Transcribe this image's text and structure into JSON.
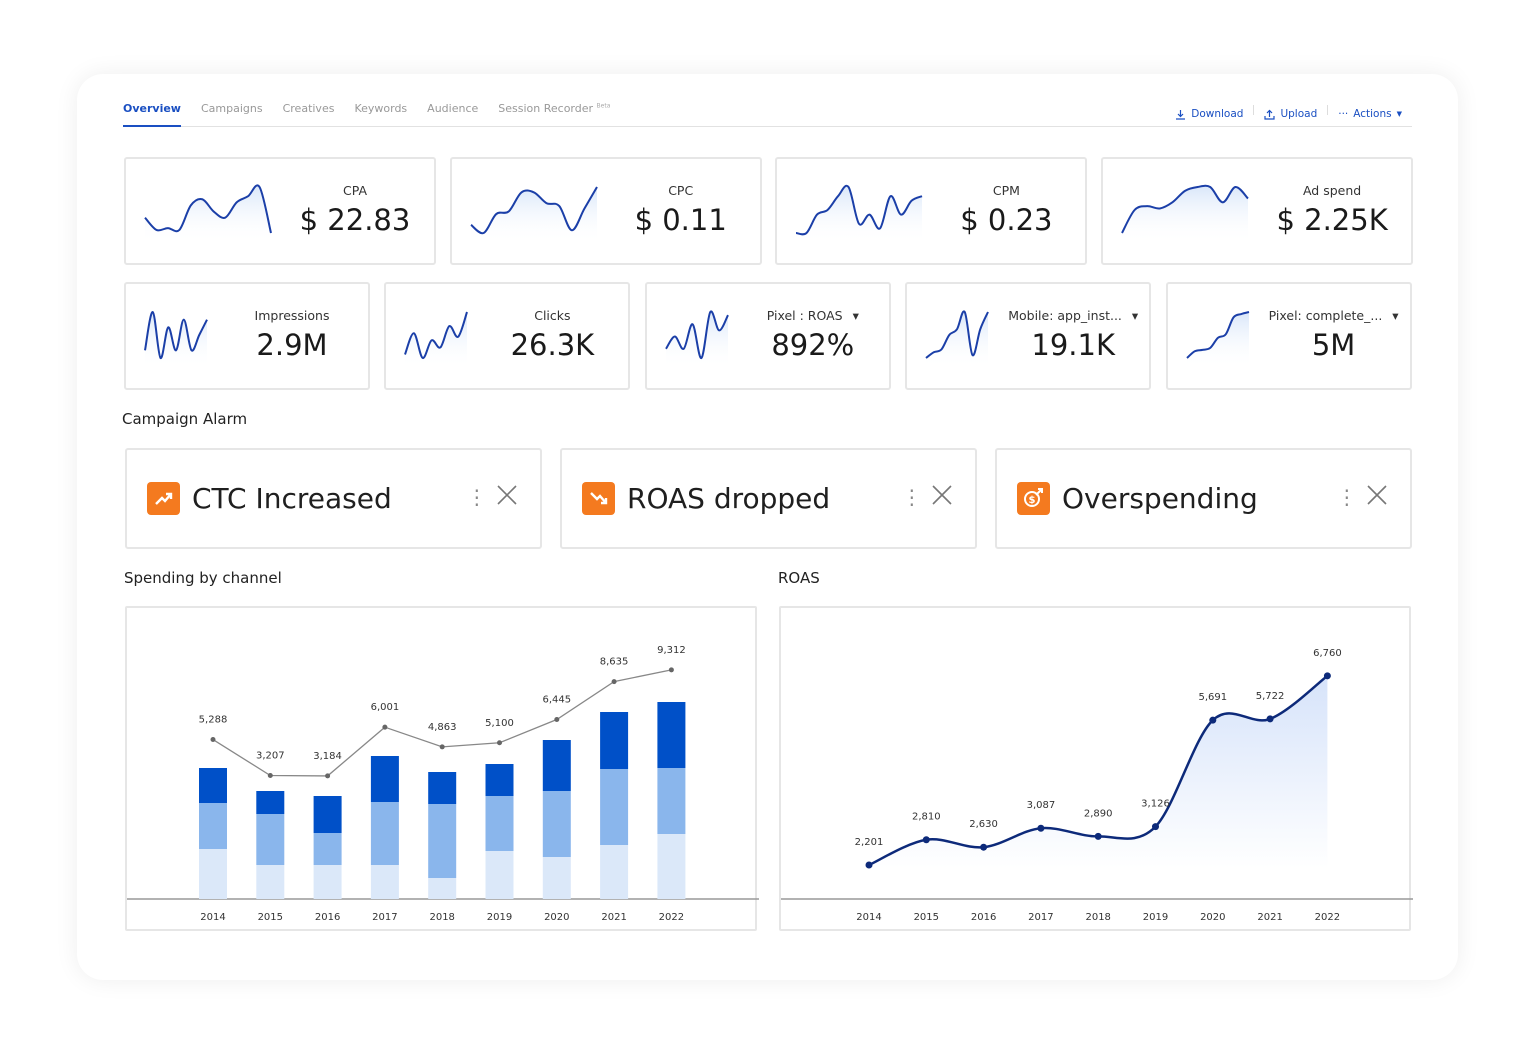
{
  "tabs": [
    {
      "label": "Overview",
      "active": true
    },
    {
      "label": "Campaigns"
    },
    {
      "label": "Creatives"
    },
    {
      "label": "Keywords"
    },
    {
      "label": "Audience"
    },
    {
      "label": "Session Recorder",
      "badge": "Beta"
    }
  ],
  "actions": {
    "download": "Download",
    "upload": "Upload",
    "more": "Actions"
  },
  "kpis_row1": [
    {
      "label": "CPA",
      "value": "$ 22.83",
      "spark": [
        3,
        1,
        1.3,
        1,
        5,
        6,
        4,
        3,
        5.5,
        6.5,
        8,
        0.5
      ]
    },
    {
      "label": "CPC",
      "value": "$ 0.11",
      "spark": [
        2,
        0.5,
        4,
        4.5,
        8,
        8,
        6,
        5.5,
        1,
        5,
        9
      ]
    },
    {
      "label": "CPM",
      "value": "$ 0.23",
      "spark": [
        2,
        2,
        4,
        4.5,
        6,
        7,
        3,
        4,
        2.5,
        6,
        4,
        5.5,
        6
      ]
    },
    {
      "label": "Ad spend",
      "value": "$ 2.25K",
      "spark": [
        2,
        5,
        5.5,
        5.2,
        6,
        7.5,
        8,
        8,
        6,
        8,
        6.5
      ]
    }
  ],
  "kpis_row2": [
    {
      "label": "Impressions",
      "value": "2.9M",
      "spark": [
        3,
        8,
        2,
        6,
        3,
        7,
        3,
        5,
        7
      ]
    },
    {
      "label": "Clicks",
      "value": "26.3K",
      "spark": [
        2,
        5,
        1.5,
        4,
        3,
        6,
        4.5,
        8
      ]
    },
    {
      "label": "Pixel : ROAS",
      "value": "892%",
      "dropdown": true,
      "spark": [
        3,
        5,
        3,
        7,
        1.5,
        9,
        6,
        8.5
      ]
    },
    {
      "label": "Mobile: app_inst...",
      "value": "19.1K",
      "dropdown": true,
      "spark": [
        1,
        2,
        2.5,
        5,
        6,
        9,
        1.5,
        6,
        9
      ]
    },
    {
      "label": "Pixel: complete_...",
      "value": "5M",
      "dropdown": true,
      "spark": [
        1,
        2,
        2.2,
        2.5,
        4,
        4.5,
        7,
        7.5,
        7.8
      ]
    }
  ],
  "alarm_title": "Campaign Alarm",
  "alarms": [
    {
      "label": "CTC Increased",
      "icon": "trend-up-icon"
    },
    {
      "label": "ROAS dropped",
      "icon": "trend-down-icon"
    },
    {
      "label": "Overspending",
      "icon": "dollar-up-icon"
    }
  ],
  "colors": {
    "accent": "#1a4fc2",
    "alarm": "#f47a1f",
    "bar_dark": "#0050c8",
    "bar_mid": "#8ab6ec",
    "bar_light": "#dbe8f9",
    "roas_line": "#0d2a7a"
  },
  "chart_data": [
    {
      "type": "bar",
      "title": "Spending by channel",
      "stacked": true,
      "categories": [
        "2014",
        "2015",
        "2016",
        "2017",
        "2018",
        "2019",
        "2020",
        "2021",
        "2022"
      ],
      "series": [
        {
          "values": [
            2500,
            1700,
            1700,
            1700,
            1050,
            2400,
            2100,
            2700,
            3250
          ]
        },
        {
          "values": [
            2300,
            2550,
            1600,
            3150,
            3700,
            2750,
            3300,
            3800,
            3300
          ]
        },
        {
          "values": [
            1750,
            1150,
            1850,
            2300,
            1600,
            1600,
            2550,
            2850,
            3300
          ]
        }
      ],
      "line": {
        "values": [
          5288,
          3207,
          3184,
          6001,
          4863,
          5100,
          6445,
          8635,
          9312
        ],
        "labels": [
          "5,288",
          "3,207",
          "3,184",
          "6,001",
          "4,863",
          "5,100",
          "6,445",
          "8,635",
          "9,312"
        ]
      }
    },
    {
      "type": "area",
      "title": "ROAS",
      "categories": [
        "2014",
        "2015",
        "2016",
        "2017",
        "2018",
        "2019",
        "2020",
        "2021",
        "2022"
      ],
      "values": [
        2201,
        2810,
        2630,
        3087,
        2890,
        3126,
        5691,
        5722,
        6760
      ],
      "labels": [
        "2,201",
        "2,810",
        "2,630",
        "3,087",
        "2,890",
        "3,126",
        "5,691",
        "5,722",
        "6,760"
      ]
    }
  ]
}
